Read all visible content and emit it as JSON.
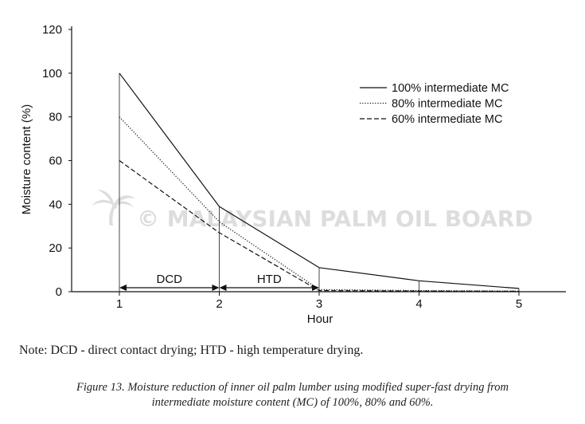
{
  "chart_data": {
    "type": "line",
    "xlabel": "Hour",
    "ylabel": "Moisture content (%)",
    "xlim": [
      0.5,
      5.45
    ],
    "ylim": [
      0,
      120
    ],
    "x_ticks": [
      1,
      2,
      3,
      4,
      5
    ],
    "y_ticks": [
      0,
      20,
      40,
      60,
      80,
      100,
      120
    ],
    "x": [
      1,
      2,
      3,
      4,
      5
    ],
    "series": [
      {
        "name": "100% intermediate MC",
        "dash": "solid",
        "values": [
          100,
          39,
          11,
          5,
          1.5
        ]
      },
      {
        "name": "80% intermediate MC",
        "dash": "dotted",
        "values": [
          80,
          32,
          1,
          0.5,
          0.3
        ]
      },
      {
        "name": "60% intermediate MC",
        "dash": "dashed",
        "values": [
          60,
          27,
          0.5,
          0.3,
          0.2
        ]
      }
    ],
    "phases": [
      {
        "label": "DCD",
        "from": 1,
        "to": 2
      },
      {
        "label": "HTD",
        "from": 2,
        "to": 3
      }
    ],
    "legend_position": "top-right",
    "grid": false,
    "watermark": "MALAYSIAN PALM OIL BOARD"
  },
  "note": "Note: DCD - direct contact drying; HTD - high temperature drying.",
  "caption": {
    "line1": "Figure 13. Moisture reduction of inner oil palm lumber using modified super-fast drying from",
    "line2": "intermediate moisture content (MC) of 100%, 80% and 60%."
  }
}
